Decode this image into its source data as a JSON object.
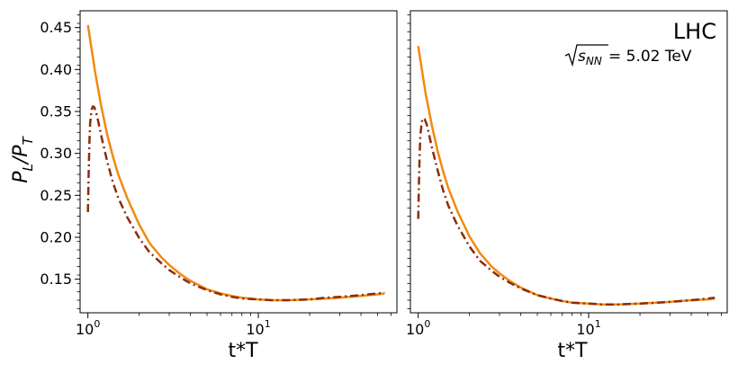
{
  "figure": {
    "ylabel_main": "P",
    "ylabel_sub1": "L",
    "ylabel_mid": "/P",
    "ylabel_sub2": "T",
    "xlabel": "t*T",
    "annotation_title": "LHC",
    "annotation_energy_var": "s",
    "annotation_energy_sub": "NN",
    "annotation_energy_value": " = 5.02 TeV"
  },
  "chart_data": [
    {
      "type": "line",
      "xscale": "log",
      "xlabel": "t*T",
      "ylabel": "P_L/P_T",
      "xlim": [
        0.9,
        65
      ],
      "ylim": [
        0.11,
        0.47
      ],
      "xticks": [
        {
          "value": 1,
          "base": "10",
          "exp": "0"
        },
        {
          "value": 10,
          "base": "10",
          "exp": "1"
        }
      ],
      "yticks": [
        {
          "value": 0.15,
          "label": "0.15"
        },
        {
          "value": 0.2,
          "label": "0.20"
        },
        {
          "value": 0.25,
          "label": "0.25"
        },
        {
          "value": 0.3,
          "label": "0.30"
        },
        {
          "value": 0.35,
          "label": "0.35"
        },
        {
          "value": 0.4,
          "label": "0.40"
        },
        {
          "value": 0.45,
          "label": "0.45"
        }
      ],
      "grid": false,
      "legend": "none",
      "series": [
        {
          "style": "solid",
          "color": "#f28a10",
          "x": [
            1.0,
            1.05,
            1.1,
            1.2,
            1.3,
            1.4,
            1.5,
            1.7,
            2.0,
            2.3,
            2.7,
            3.0,
            3.5,
            4.0,
            5.0,
            6.0,
            7.0,
            8.0,
            10,
            12,
            15,
            20,
            25,
            30,
            40,
            50,
            55
          ],
          "y": [
            0.453,
            0.425,
            0.398,
            0.355,
            0.322,
            0.297,
            0.276,
            0.247,
            0.215,
            0.193,
            0.176,
            0.167,
            0.156,
            0.148,
            0.138,
            0.133,
            0.13,
            0.128,
            0.126,
            0.125,
            0.125,
            0.126,
            0.127,
            0.128,
            0.13,
            0.132,
            0.133
          ]
        },
        {
          "style": "dash-dot",
          "color": "#8b2e0a",
          "x": [
            1.0,
            1.01,
            1.02,
            1.03,
            1.05,
            1.07,
            1.09,
            1.12,
            1.15,
            1.2,
            1.3,
            1.4,
            1.5,
            1.7,
            2.0,
            2.3,
            2.7,
            3.0,
            3.5,
            4.0,
            5.0,
            6.0,
            7.0,
            8.0,
            10,
            12,
            15,
            20,
            25,
            30,
            40,
            50,
            55
          ],
          "y": [
            0.23,
            0.275,
            0.312,
            0.335,
            0.352,
            0.356,
            0.355,
            0.348,
            0.338,
            0.32,
            0.29,
            0.266,
            0.248,
            0.224,
            0.199,
            0.182,
            0.169,
            0.161,
            0.152,
            0.145,
            0.137,
            0.132,
            0.129,
            0.127,
            0.126,
            0.125,
            0.125,
            0.126,
            0.128,
            0.129,
            0.131,
            0.133,
            0.134
          ]
        }
      ]
    },
    {
      "type": "line",
      "xscale": "log",
      "xlabel": "t*T",
      "ylabel": "",
      "xlim": [
        0.9,
        65
      ],
      "ylim": [
        0.11,
        0.47
      ],
      "xticks": [
        {
          "value": 1,
          "base": "10",
          "exp": "0"
        },
        {
          "value": 10,
          "base": "10",
          "exp": "1"
        }
      ],
      "yticks": [],
      "grid": false,
      "legend": "none",
      "series": [
        {
          "style": "solid",
          "color": "#f28a10",
          "x": [
            1.0,
            1.05,
            1.1,
            1.2,
            1.3,
            1.4,
            1.5,
            1.7,
            2.0,
            2.3,
            2.7,
            3.0,
            3.5,
            4.0,
            5.0,
            6.0,
            7.0,
            8.0,
            10,
            12,
            15,
            20,
            25,
            30,
            40,
            50,
            55
          ],
          "y": [
            0.428,
            0.4,
            0.374,
            0.334,
            0.303,
            0.279,
            0.259,
            0.231,
            0.201,
            0.181,
            0.165,
            0.157,
            0.147,
            0.14,
            0.131,
            0.127,
            0.124,
            0.122,
            0.121,
            0.12,
            0.12,
            0.121,
            0.122,
            0.123,
            0.125,
            0.126,
            0.127
          ]
        },
        {
          "style": "dash-dot",
          "color": "#8b2e0a",
          "x": [
            1.0,
            1.01,
            1.02,
            1.03,
            1.05,
            1.07,
            1.09,
            1.12,
            1.15,
            1.2,
            1.3,
            1.4,
            1.5,
            1.7,
            2.0,
            2.3,
            2.7,
            3.0,
            3.5,
            4.0,
            5.0,
            6.0,
            7.0,
            8.0,
            10,
            12,
            15,
            20,
            25,
            30,
            40,
            50,
            55
          ],
          "y": [
            0.222,
            0.265,
            0.3,
            0.322,
            0.338,
            0.342,
            0.341,
            0.335,
            0.325,
            0.308,
            0.28,
            0.256,
            0.238,
            0.214,
            0.189,
            0.172,
            0.16,
            0.153,
            0.145,
            0.139,
            0.131,
            0.127,
            0.124,
            0.122,
            0.121,
            0.12,
            0.12,
            0.121,
            0.122,
            0.123,
            0.125,
            0.127,
            0.128
          ]
        }
      ]
    }
  ]
}
